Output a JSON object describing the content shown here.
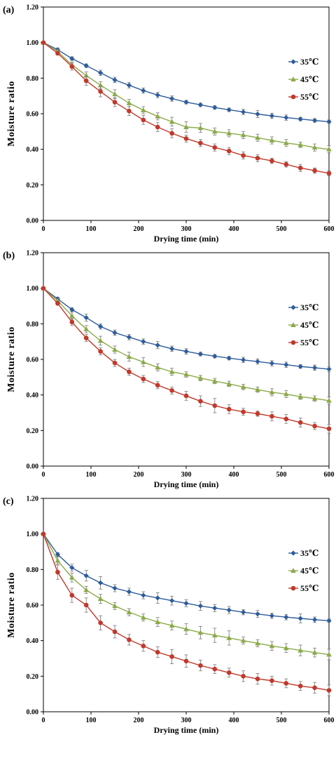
{
  "chart_data": [
    {
      "panel_label": "(a)",
      "type": "line",
      "xlabel": "Drying time (min)",
      "ylabel": "Moisture ratio",
      "xlim": [
        0,
        600
      ],
      "ylim": [
        0,
        1.2
      ],
      "xticks": [
        "0",
        "100",
        "200",
        "300",
        "400",
        "500",
        "600"
      ],
      "yticks": [
        "0.00",
        "0.20",
        "0.40",
        "0.60",
        "0.80",
        "1.00",
        "1.20"
      ],
      "legend_position": "right",
      "x": [
        0,
        30,
        60,
        90,
        120,
        150,
        180,
        210,
        240,
        270,
        300,
        330,
        360,
        390,
        420,
        450,
        480,
        510,
        540,
        570,
        600
      ],
      "series": [
        {
          "name": "35℃",
          "marker": "diamond",
          "color": "#2E5C9A",
          "values": [
            1.0,
            0.96,
            0.91,
            0.87,
            0.83,
            0.79,
            0.76,
            0.73,
            0.705,
            0.685,
            0.665,
            0.65,
            0.635,
            0.622,
            0.61,
            0.598,
            0.588,
            0.578,
            0.57,
            0.562,
            0.555
          ],
          "errors": [
            0,
            0.01,
            0.01,
            0.01,
            0.015,
            0.015,
            0.015,
            0.015,
            0.015,
            0.015,
            0.01,
            0.01,
            0.01,
            0.01,
            0.015,
            0.02,
            0.015,
            0.015,
            0.01,
            0.01,
            0.01
          ]
        },
        {
          "name": "45℃",
          "marker": "triangle",
          "color": "#8BAA4A",
          "values": [
            1.0,
            0.95,
            0.875,
            0.815,
            0.76,
            0.71,
            0.66,
            0.62,
            0.585,
            0.555,
            0.525,
            0.52,
            0.5,
            0.49,
            0.48,
            0.465,
            0.45,
            0.435,
            0.425,
            0.41,
            0.4
          ],
          "errors": [
            0,
            0.01,
            0.015,
            0.02,
            0.02,
            0.025,
            0.02,
            0.02,
            0.02,
            0.025,
            0.03,
            0.025,
            0.02,
            0.02,
            0.02,
            0.02,
            0.02,
            0.02,
            0.015,
            0.02,
            0.02
          ]
        },
        {
          "name": "55℃",
          "marker": "circle",
          "color": "#C0392B",
          "values": [
            1.0,
            0.94,
            0.865,
            0.785,
            0.725,
            0.665,
            0.615,
            0.565,
            0.525,
            0.49,
            0.46,
            0.435,
            0.41,
            0.39,
            0.365,
            0.35,
            0.335,
            0.315,
            0.295,
            0.28,
            0.265
          ],
          "errors": [
            0,
            0.01,
            0.02,
            0.025,
            0.03,
            0.025,
            0.025,
            0.025,
            0.025,
            0.025,
            0.02,
            0.02,
            0.02,
            0.02,
            0.02,
            0.02,
            0.015,
            0.015,
            0.02,
            0.015,
            0.015
          ]
        }
      ]
    },
    {
      "panel_label": "(b)",
      "type": "line",
      "xlabel": "Drying time (min)",
      "ylabel": "Moisture ratio",
      "xlim": [
        0,
        600
      ],
      "ylim": [
        0,
        1.2
      ],
      "xticks": [
        "0",
        "100",
        "200",
        "300",
        "400",
        "500",
        "600"
      ],
      "yticks": [
        "0.00",
        "0.20",
        "0.40",
        "0.60",
        "0.80",
        "1.00",
        "1.20"
      ],
      "legend_position": "right",
      "x": [
        0,
        30,
        60,
        90,
        120,
        150,
        180,
        210,
        240,
        270,
        300,
        330,
        360,
        390,
        420,
        450,
        480,
        510,
        540,
        570,
        600
      ],
      "series": [
        {
          "name": "35℃",
          "marker": "diamond",
          "color": "#2E5C9A",
          "values": [
            1.0,
            0.94,
            0.88,
            0.835,
            0.785,
            0.75,
            0.725,
            0.7,
            0.68,
            0.66,
            0.645,
            0.63,
            0.618,
            0.607,
            0.597,
            0.588,
            0.578,
            0.57,
            0.56,
            0.553,
            0.545
          ],
          "errors": [
            0,
            0.01,
            0.01,
            0.02,
            0.015,
            0.015,
            0.015,
            0.015,
            0.02,
            0.015,
            0.015,
            0.01,
            0.01,
            0.01,
            0.015,
            0.015,
            0.015,
            0.015,
            0.01,
            0.015,
            0.015
          ]
        },
        {
          "name": "45℃",
          "marker": "triangle",
          "color": "#8BAA4A",
          "values": [
            1.0,
            0.93,
            0.845,
            0.77,
            0.705,
            0.655,
            0.615,
            0.585,
            0.555,
            0.53,
            0.515,
            0.495,
            0.478,
            0.462,
            0.445,
            0.43,
            0.415,
            0.405,
            0.39,
            0.38,
            0.368
          ],
          "errors": [
            0,
            0.01,
            0.02,
            0.02,
            0.025,
            0.02,
            0.025,
            0.025,
            0.02,
            0.02,
            0.015,
            0.015,
            0.015,
            0.015,
            0.015,
            0.015,
            0.02,
            0.02,
            0.015,
            0.015,
            0.02
          ]
        },
        {
          "name": "55℃",
          "marker": "circle",
          "color": "#C0392B",
          "values": [
            1.0,
            0.915,
            0.81,
            0.72,
            0.645,
            0.58,
            0.53,
            0.49,
            0.455,
            0.425,
            0.395,
            0.365,
            0.34,
            0.32,
            0.305,
            0.295,
            0.28,
            0.265,
            0.245,
            0.225,
            0.21
          ],
          "errors": [
            0,
            0.01,
            0.02,
            0.02,
            0.02,
            0.02,
            0.02,
            0.02,
            0.02,
            0.02,
            0.025,
            0.03,
            0.04,
            0.025,
            0.02,
            0.015,
            0.025,
            0.025,
            0.025,
            0.02,
            0.025
          ]
        }
      ]
    },
    {
      "panel_label": "(c)",
      "type": "line",
      "xlabel": "Drying time (min)",
      "ylabel": "Moisture ratio",
      "xlim": [
        0,
        600
      ],
      "ylim": [
        0,
        1.2
      ],
      "xticks": [
        "0",
        "100",
        "200",
        "300",
        "400",
        "500",
        "600"
      ],
      "yticks": [
        "0.00",
        "0.20",
        "0.40",
        "0.60",
        "0.80",
        "1.00",
        "1.20"
      ],
      "legend_position": "right",
      "x": [
        0,
        30,
        60,
        90,
        120,
        150,
        180,
        210,
        240,
        270,
        300,
        330,
        360,
        390,
        420,
        450,
        480,
        510,
        540,
        570,
        600
      ],
      "series": [
        {
          "name": "35℃",
          "marker": "diamond",
          "color": "#2E5C9A",
          "values": [
            1.0,
            0.885,
            0.81,
            0.765,
            0.725,
            0.695,
            0.675,
            0.655,
            0.64,
            0.625,
            0.61,
            0.595,
            0.583,
            0.572,
            0.56,
            0.55,
            0.54,
            0.532,
            0.525,
            0.518,
            0.512
          ],
          "errors": [
            0,
            0.01,
            0.02,
            0.03,
            0.035,
            0.02,
            0.02,
            0.02,
            0.03,
            0.025,
            0.02,
            0.025,
            0.02,
            0.02,
            0.015,
            0.02,
            0.015,
            0.015,
            0.025,
            0.015,
            0.01
          ]
        },
        {
          "name": "45℃",
          "marker": "triangle",
          "color": "#8BAA4A",
          "values": [
            1.0,
            0.85,
            0.755,
            0.685,
            0.635,
            0.595,
            0.56,
            0.53,
            0.505,
            0.485,
            0.465,
            0.445,
            0.43,
            0.415,
            0.4,
            0.385,
            0.37,
            0.358,
            0.345,
            0.333,
            0.322
          ],
          "errors": [
            0,
            0.02,
            0.025,
            0.02,
            0.025,
            0.02,
            0.02,
            0.02,
            0.025,
            0.025,
            0.03,
            0.035,
            0.04,
            0.04,
            0.02,
            0.02,
            0.025,
            0.025,
            0.03,
            0.025,
            0.03
          ]
        },
        {
          "name": "55℃",
          "marker": "circle",
          "color": "#C0392B",
          "values": [
            1.0,
            0.785,
            0.655,
            0.6,
            0.5,
            0.45,
            0.405,
            0.37,
            0.335,
            0.31,
            0.285,
            0.26,
            0.24,
            0.22,
            0.2,
            0.185,
            0.175,
            0.16,
            0.145,
            0.135,
            0.12
          ],
          "errors": [
            0,
            0.04,
            0.04,
            0.04,
            0.04,
            0.035,
            0.03,
            0.03,
            0.03,
            0.04,
            0.035,
            0.03,
            0.025,
            0.025,
            0.03,
            0.03,
            0.025,
            0.025,
            0.025,
            0.03,
            0.03
          ]
        }
      ]
    }
  ]
}
